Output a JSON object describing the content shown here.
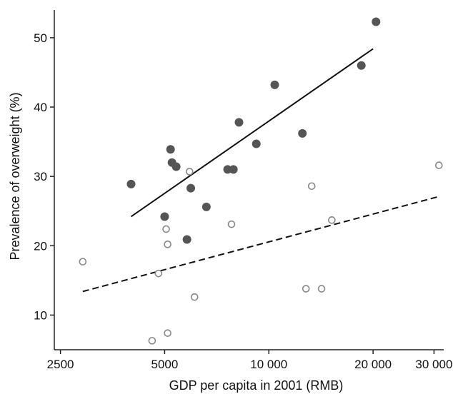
{
  "chart_data": {
    "type": "scatter",
    "xlabel": "GDP per capita in 2001 (RMB)",
    "ylabel": "Prevalence of overweight (%)",
    "x_scale": "log",
    "xlim": [
      2400,
      32000
    ],
    "ylim": [
      5,
      54
    ],
    "x_ticks": [
      {
        "value": 2500,
        "label": "2500"
      },
      {
        "value": 5000,
        "label": "5000"
      },
      {
        "value": 10000,
        "label": "10 000"
      },
      {
        "value": 20000,
        "label": "20 000"
      },
      {
        "value": 30000,
        "label": "30 000"
      }
    ],
    "y_ticks": [
      {
        "value": 10,
        "label": "10"
      },
      {
        "value": 20,
        "label": "20"
      },
      {
        "value": 30,
        "label": "30"
      },
      {
        "value": 40,
        "label": "40"
      },
      {
        "value": 50,
        "label": "50"
      }
    ],
    "grid": false,
    "series": [
      {
        "marker": "filled-circle",
        "color": "#555555",
        "points": [
          {
            "x": 4000,
            "y": 28.9
          },
          {
            "x": 5000,
            "y": 24.2
          },
          {
            "x": 5200,
            "y": 33.9
          },
          {
            "x": 5250,
            "y": 32.0
          },
          {
            "x": 5400,
            "y": 31.4
          },
          {
            "x": 5800,
            "y": 20.9
          },
          {
            "x": 5950,
            "y": 28.3
          },
          {
            "x": 6600,
            "y": 25.6
          },
          {
            "x": 7600,
            "y": 31.0
          },
          {
            "x": 7900,
            "y": 31.0
          },
          {
            "x": 8200,
            "y": 37.8
          },
          {
            "x": 9200,
            "y": 34.7
          },
          {
            "x": 10400,
            "y": 43.2
          },
          {
            "x": 12500,
            "y": 36.2
          },
          {
            "x": 18500,
            "y": 46.0
          },
          {
            "x": 20400,
            "y": 52.3
          }
        ],
        "trend": {
          "style": "solid",
          "x": [
            4000,
            20000
          ],
          "y": [
            24.2,
            48.4
          ]
        }
      },
      {
        "marker": "open-circle",
        "color": "#888888",
        "points": [
          {
            "x": 2900,
            "y": 17.7
          },
          {
            "x": 4600,
            "y": 6.3
          },
          {
            "x": 4800,
            "y": 16.0
          },
          {
            "x": 5050,
            "y": 22.4
          },
          {
            "x": 5100,
            "y": 20.2
          },
          {
            "x": 5100,
            "y": 7.4
          },
          {
            "x": 5900,
            "y": 30.7
          },
          {
            "x": 6100,
            "y": 12.6
          },
          {
            "x": 7800,
            "y": 23.1
          },
          {
            "x": 12800,
            "y": 13.8
          },
          {
            "x": 13300,
            "y": 28.6
          },
          {
            "x": 14200,
            "y": 13.8
          },
          {
            "x": 15200,
            "y": 23.7
          },
          {
            "x": 31000,
            "y": 31.6
          }
        ],
        "trend": {
          "style": "dashed",
          "x": [
            2900,
            31000
          ],
          "y": [
            13.4,
            27.1
          ]
        }
      }
    ]
  }
}
